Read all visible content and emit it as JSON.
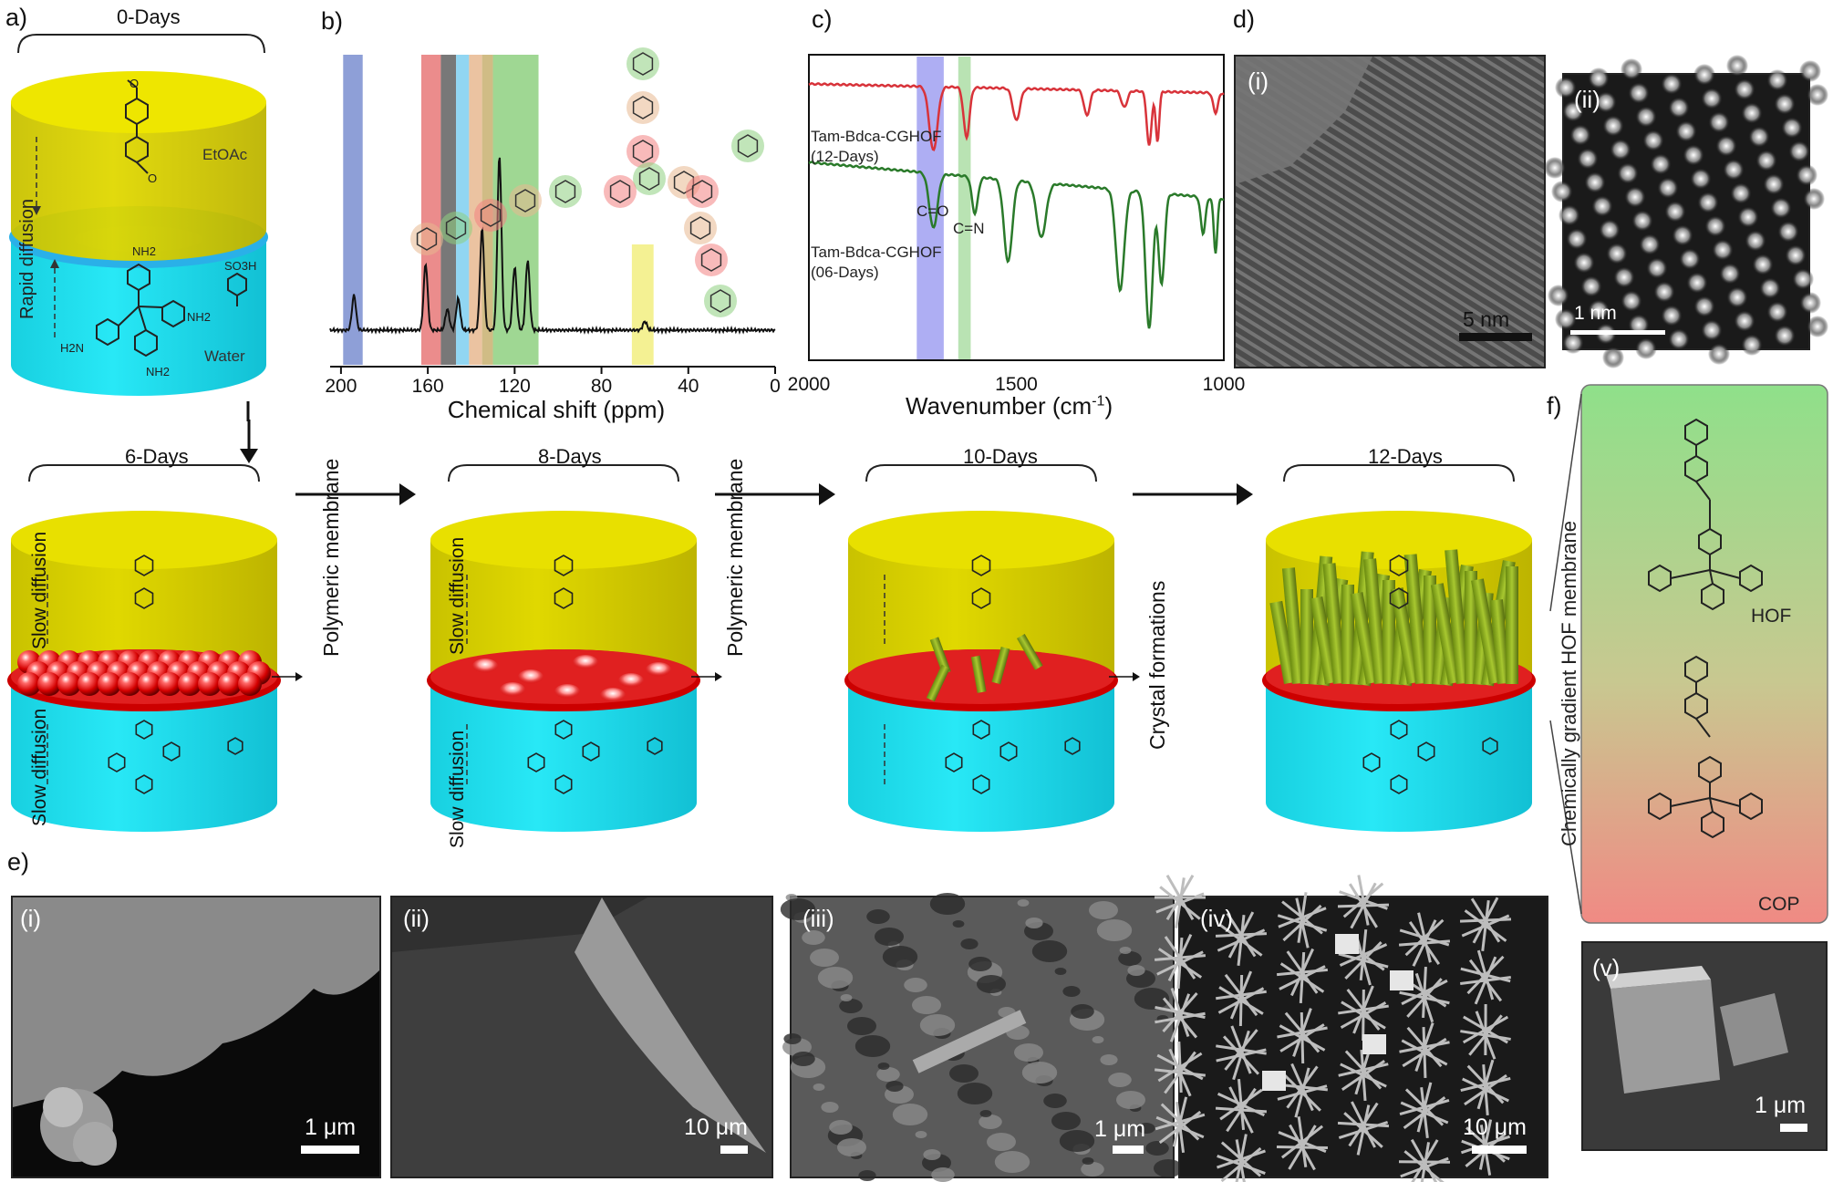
{
  "panel_labels": {
    "a": "a)",
    "b": "b)",
    "c": "c)",
    "d": "d)",
    "e": "e)",
    "f": "f)"
  },
  "panel_a": {
    "day": "0-Days",
    "organic": "EtOAc",
    "aqueous": "Water",
    "diffusion": "Rapid diffusion",
    "nh2": "NH2",
    "so3h": "SO3H",
    "h2n": "H2N"
  },
  "stages": [
    {
      "day": "6-Days",
      "diff_top": "Slow diffusion",
      "diff_bottom": "Slow diffusion",
      "side": "Polymeric membrane"
    },
    {
      "day": "8-Days",
      "diff_top": "Slow diffusion",
      "diff_bottom": "Slow diffusion",
      "side": "Polymeric membrane"
    },
    {
      "day": "10-Days",
      "diff_top": "",
      "diff_bottom": "",
      "side": "Crystal formations"
    },
    {
      "day": "12-Days",
      "diff_top": "",
      "diff_bottom": "",
      "side": ""
    }
  ],
  "panel_f": {
    "vertical": "Chemically gradient HOF  membrane",
    "top": "HOF",
    "bottom": "COP",
    "gradient_top": "#8fe08a",
    "gradient_bottom": "#f08a84"
  },
  "chart_data": [
    {
      "type": "line",
      "xlabel": "Chemical shift (ppm)",
      "x_ticks": [
        200,
        160,
        120,
        80,
        40,
        0
      ],
      "xlim": [
        205,
        0
      ],
      "peaks": [
        {
          "x": 194,
          "h": 0.2
        },
        {
          "x": 161,
          "h": 0.38
        },
        {
          "x": 151,
          "h": 0.12
        },
        {
          "x": 146,
          "h": 0.18
        },
        {
          "x": 135,
          "h": 0.58
        },
        {
          "x": 127,
          "h": 1.0
        },
        {
          "x": 120,
          "h": 0.36
        },
        {
          "x": 114,
          "h": 0.4
        },
        {
          "x": 60,
          "h": 0.05
        }
      ],
      "highlight_bands": [
        {
          "from": 199,
          "to": 190,
          "color": "#7a8ed0"
        },
        {
          "from": 163,
          "to": 154,
          "color": "#e87878"
        },
        {
          "from": 154,
          "to": 147,
          "color": "#606060"
        },
        {
          "from": 147,
          "to": 141,
          "color": "#7ecff0"
        },
        {
          "from": 141,
          "to": 135,
          "color": "#e8b890"
        },
        {
          "from": 135,
          "to": 130,
          "color": "#c8b070"
        },
        {
          "from": 130,
          "to": 109,
          "color": "#8ed080"
        },
        {
          "from": 66,
          "to": 56,
          "color": "#f2ef80"
        }
      ]
    },
    {
      "type": "line",
      "xlabel": "Wavenumber (cm-1)",
      "xlabel_main": "Wavenumber (cm",
      "xlabel_sup": "-1",
      "xlabel_close": ")",
      "x_ticks": [
        2000,
        1500,
        1000
      ],
      "xlim": [
        2000,
        1000
      ],
      "series": [
        {
          "name": "Tam-Bdca-CGHOF",
          "sub": "(12-Days)",
          "color": "#d8333a"
        },
        {
          "name": "Tam-Bdca-CGHOF",
          "sub": "(06-Days)",
          "color": "#2a7a2a"
        }
      ],
      "annotations": [
        "C=O",
        "C=N"
      ],
      "highlight_bands": [
        {
          "from": 1740,
          "to": 1675,
          "color": "#9a9af0"
        },
        {
          "from": 1640,
          "to": 1610,
          "color": "#a8dca0"
        }
      ]
    }
  ],
  "tem": [
    {
      "label": "(i)",
      "scale": "5 nm"
    },
    {
      "label": "(ii)",
      "scale": "1 nm"
    }
  ],
  "sem": [
    {
      "label": "(i)",
      "scale": "1 μm"
    },
    {
      "label": "(ii)",
      "scale": "10 μm"
    },
    {
      "label": "(iii)",
      "scale": "1 μm"
    },
    {
      "label": "(iv)",
      "scale": "10 μm"
    },
    {
      "label": "(v)",
      "scale": "1 μm"
    }
  ]
}
